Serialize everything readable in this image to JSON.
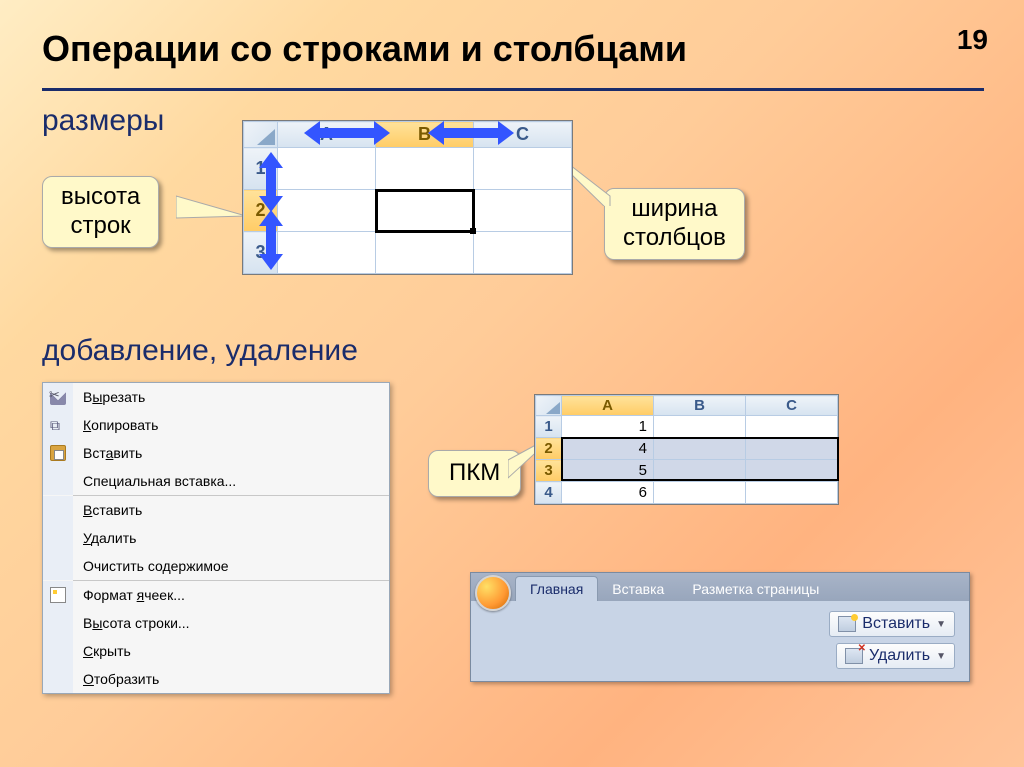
{
  "page_number": "19",
  "title": "Операции со строками и столбцами",
  "sub_sizes": "размеры",
  "sub_add": "добавление, удаление",
  "callouts": {
    "row_height": {
      "line1": "высота",
      "line2": "строк"
    },
    "col_width": {
      "line1": "ширина",
      "line2": "столбцов"
    },
    "pkm": "ПКМ"
  },
  "sheet1": {
    "cols": [
      "A",
      "B",
      "C"
    ],
    "rows": [
      "1",
      "2",
      "3"
    ],
    "selected_col_idx": 1,
    "selected_row_idx": 1,
    "active_cell": {
      "r": 1,
      "c": 1
    }
  },
  "sheet2": {
    "cols": [
      "A",
      "B",
      "C"
    ],
    "rows": [
      "1",
      "2",
      "3",
      "4"
    ],
    "values_A": [
      "1",
      "4",
      "5",
      "6"
    ],
    "selected_rows": [
      1,
      2
    ],
    "selected_col_idx": 0
  },
  "context_menu": [
    {
      "icon": "cut",
      "html": "В<u>ы</u>резать"
    },
    {
      "icon": "copy",
      "html": "<u>К</u>опировать"
    },
    {
      "icon": "paste",
      "html": "Вст<u>а</u>вить"
    },
    {
      "icon": "",
      "html": "Специальная вставка..."
    },
    {
      "sep": true
    },
    {
      "icon": "",
      "html": "<u>В</u>ставить"
    },
    {
      "icon": "",
      "html": "<u>У</u>далить"
    },
    {
      "icon": "",
      "html": "Очистить содержимое"
    },
    {
      "sep": true
    },
    {
      "icon": "format",
      "html": "Формат <u>я</u>чеек..."
    },
    {
      "icon": "",
      "html": "В<u>ы</u>сота строки..."
    },
    {
      "icon": "",
      "html": "<u>С</u>крыть"
    },
    {
      "icon": "",
      "html": "<u>О</u>тобразить"
    }
  ],
  "ribbon": {
    "tabs": [
      "Главная",
      "Вставка",
      "Разметка страницы"
    ],
    "active_tab": 0,
    "buttons": {
      "insert": "Вставить",
      "delete": "Удалить"
    }
  },
  "colors": {
    "heading": "#1a2c6b",
    "arrow": "#3355ff",
    "callout_bg": "#fff9c9"
  }
}
